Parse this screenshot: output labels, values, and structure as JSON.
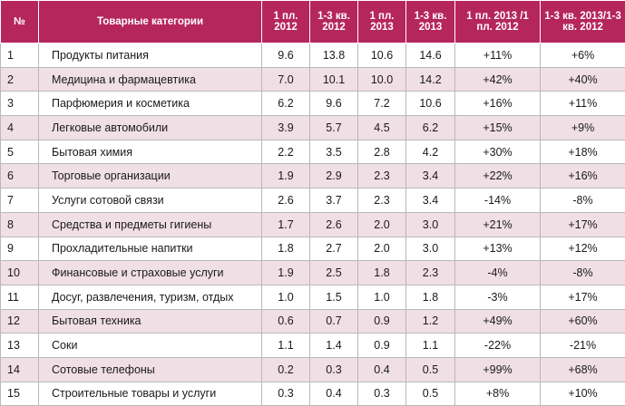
{
  "table": {
    "headers": [
      "№",
      "Товарные категории",
      "1 пл. 2012",
      "1-3 кв. 2012",
      "1 пл. 2013",
      "1-3 кв. 2013",
      "1 пл. 2013 /1 пл. 2012",
      "1-3 кв. 2013/1-3 кв. 2012"
    ],
    "rows": [
      [
        "1",
        "Продукты питания",
        "9.6",
        "13.8",
        "10.6",
        "14.6",
        "+11%",
        "+6%"
      ],
      [
        "2",
        "Медицина и фармацевтика",
        "7.0",
        "10.1",
        "10.0",
        "14.2",
        "+42%",
        "+40%"
      ],
      [
        "3",
        "Парфюмерия и косметика",
        "6.2",
        "9.6",
        "7.2",
        "10.6",
        "+16%",
        "+11%"
      ],
      [
        "4",
        "Легковые автомобили",
        "3.9",
        "5.7",
        "4.5",
        "6.2",
        "+15%",
        "+9%"
      ],
      [
        "5",
        "Бытовая химия",
        "2.2",
        "3.5",
        "2.8",
        "4.2",
        "+30%",
        "+18%"
      ],
      [
        "6",
        "Торговые организации",
        "1.9",
        "2.9",
        "2.3",
        "3.4",
        "+22%",
        "+16%"
      ],
      [
        "7",
        "Услуги сотовой связи",
        "2.6",
        "3.7",
        "2.3",
        "3.4",
        "-14%",
        "-8%"
      ],
      [
        "8",
        "Средства и предметы гигиены",
        "1.7",
        "2.6",
        "2.0",
        "3.0",
        "+21%",
        "+17%"
      ],
      [
        "9",
        "Прохладительные напитки",
        "1.8",
        "2.7",
        "2.0",
        "3.0",
        "+13%",
        "+12%"
      ],
      [
        "10",
        "Финансовые и страховые услуги",
        "1.9",
        "2.5",
        "1.8",
        "2.3",
        "-4%",
        "-8%"
      ],
      [
        "11",
        "Досуг, развлечения, туризм, отдых",
        "1.0",
        "1.5",
        "1.0",
        "1.8",
        "-3%",
        "+17%"
      ],
      [
        "12",
        "Бытовая техника",
        "0.6",
        "0.7",
        "0.9",
        "1.2",
        "+49%",
        "+60%"
      ],
      [
        "13",
        "Соки",
        "1.1",
        "1.4",
        "0.9",
        "1.1",
        "-22%",
        "-21%"
      ],
      [
        "14",
        "Сотовые телефоны",
        "0.2",
        "0.3",
        "0.4",
        "0.5",
        "+99%",
        "+68%"
      ],
      [
        "15",
        "Строительные товары и услуги",
        "0.3",
        "0.4",
        "0.3",
        "0.5",
        "+8%",
        "+10%"
      ]
    ]
  }
}
